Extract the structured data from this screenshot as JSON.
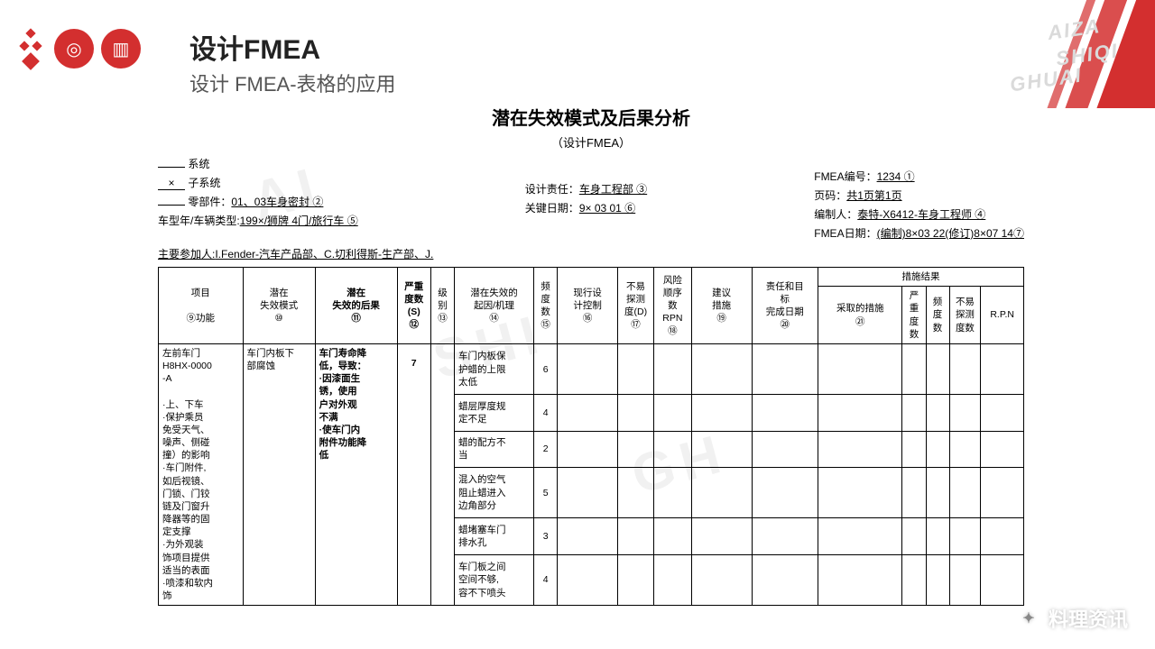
{
  "header": {
    "title": "设计FMEA",
    "subtitle": "设计 FMEA-表格的应用"
  },
  "doc_title": "潜在失效模式及后果分析",
  "doc_subtitle": "（设计FMEA）",
  "meta_left": {
    "system": "系统",
    "subsystem_mark": "×",
    "subsystem": "子系统",
    "part_label": "零部件：",
    "part_value": "01、03车身密封  ②",
    "model_label": "车型年/车辆类型:",
    "model_value": "199×/狮牌   4门/旅行车  ⑤"
  },
  "meta_mid": {
    "resp_label": "设计责任：",
    "resp_value": "车身工程部   ③",
    "date_label": "关键日期：",
    "date_value": "9×   03  01   ⑥"
  },
  "meta_right": {
    "fmea_no_label": "FMEA编号：",
    "fmea_no_value": "1234    ①",
    "page_label": "页码：",
    "page_value": "共1页第1页",
    "author_label": "编制人：",
    "author_value": "泰特-X6412-车身工程师  ④",
    "fmea_date_label": "FMEA日期：",
    "fmea_date_value": "(编制)8×03 22(修订)8×07 14⑦"
  },
  "participants_label": "主要参加人:",
  "participants_value": "I.Fender-汽车产品部、C.切利得斯-生产部、J.",
  "columns": {
    "item": "项目\n\n⑨功能",
    "failure_mode": "潜在\n失效模式\n⑩",
    "effect": "潜在\n失效的后果\n⑪",
    "severity": "严重\n度数\n(S)\n⑫",
    "class": "级\n别\n⑬",
    "cause": "潜在失效的\n起因/机理\n⑭",
    "occurrence": "频\n度\n数\n⑮",
    "control": "现行设\n计控制\n⑯",
    "detection": "不易\n探测\n度(D)\n⑰",
    "rpn": "风险\n顺序\n数\nRPN\n⑱",
    "action": "建议\n措施\n⑲",
    "resp": "责任和目\n标\n完成日期\n⑳",
    "results_header": "措施结果",
    "taken": "采取的措施\n㉑",
    "r_sev": "严\n重\n度\n数",
    "r_occ": "频\n度\n数",
    "r_det": "不易\n探测\n度数",
    "r_rpn": "R.P.N"
  },
  "row": {
    "item": "左前车门\nH8HX-0000\n-A\n\n·上、下车\n·保护乘员\n免受天气、\n噪声、侧碰\n撞）的影响\n·车门附件,\n如后视镜、\n门锁、门铰\n链及门窗升\n降器等的固\n定支撑\n·为外观装\n饰项目提供\n适当的表面\n·喷漆和软内\n饰",
    "failure_mode": "车门内板下\n部腐蚀",
    "effect": "车门寿命降\n低，导致：\n·因漆面生\n锈，使用\n户对外观\n不满\n·使车门内\n附件功能降\n低",
    "severity": "7",
    "causes": [
      {
        "text": "车门内板保\n护蜡的上限\n太低",
        "occ": "6"
      },
      {
        "text": "蜡层厚度规\n定不足",
        "occ": "4"
      },
      {
        "text": "蜡的配方不\n当",
        "occ": "2"
      },
      {
        "text": "混入的空气\n阻止蜡进入\n边角部分",
        "occ": "5"
      },
      {
        "text": "蜡堵塞车门\n排水孔",
        "occ": "3"
      },
      {
        "text": "车门板之间\n空间不够,\n容不下喷头",
        "occ": "4"
      }
    ]
  },
  "footer": "料理资讯",
  "watermark": {
    "l1": "AIZA",
    "l2": "SHIQI",
    "l3": "GHUAI"
  },
  "colors": {
    "accent": "#d32f2f",
    "text": "#222",
    "border": "#000"
  }
}
